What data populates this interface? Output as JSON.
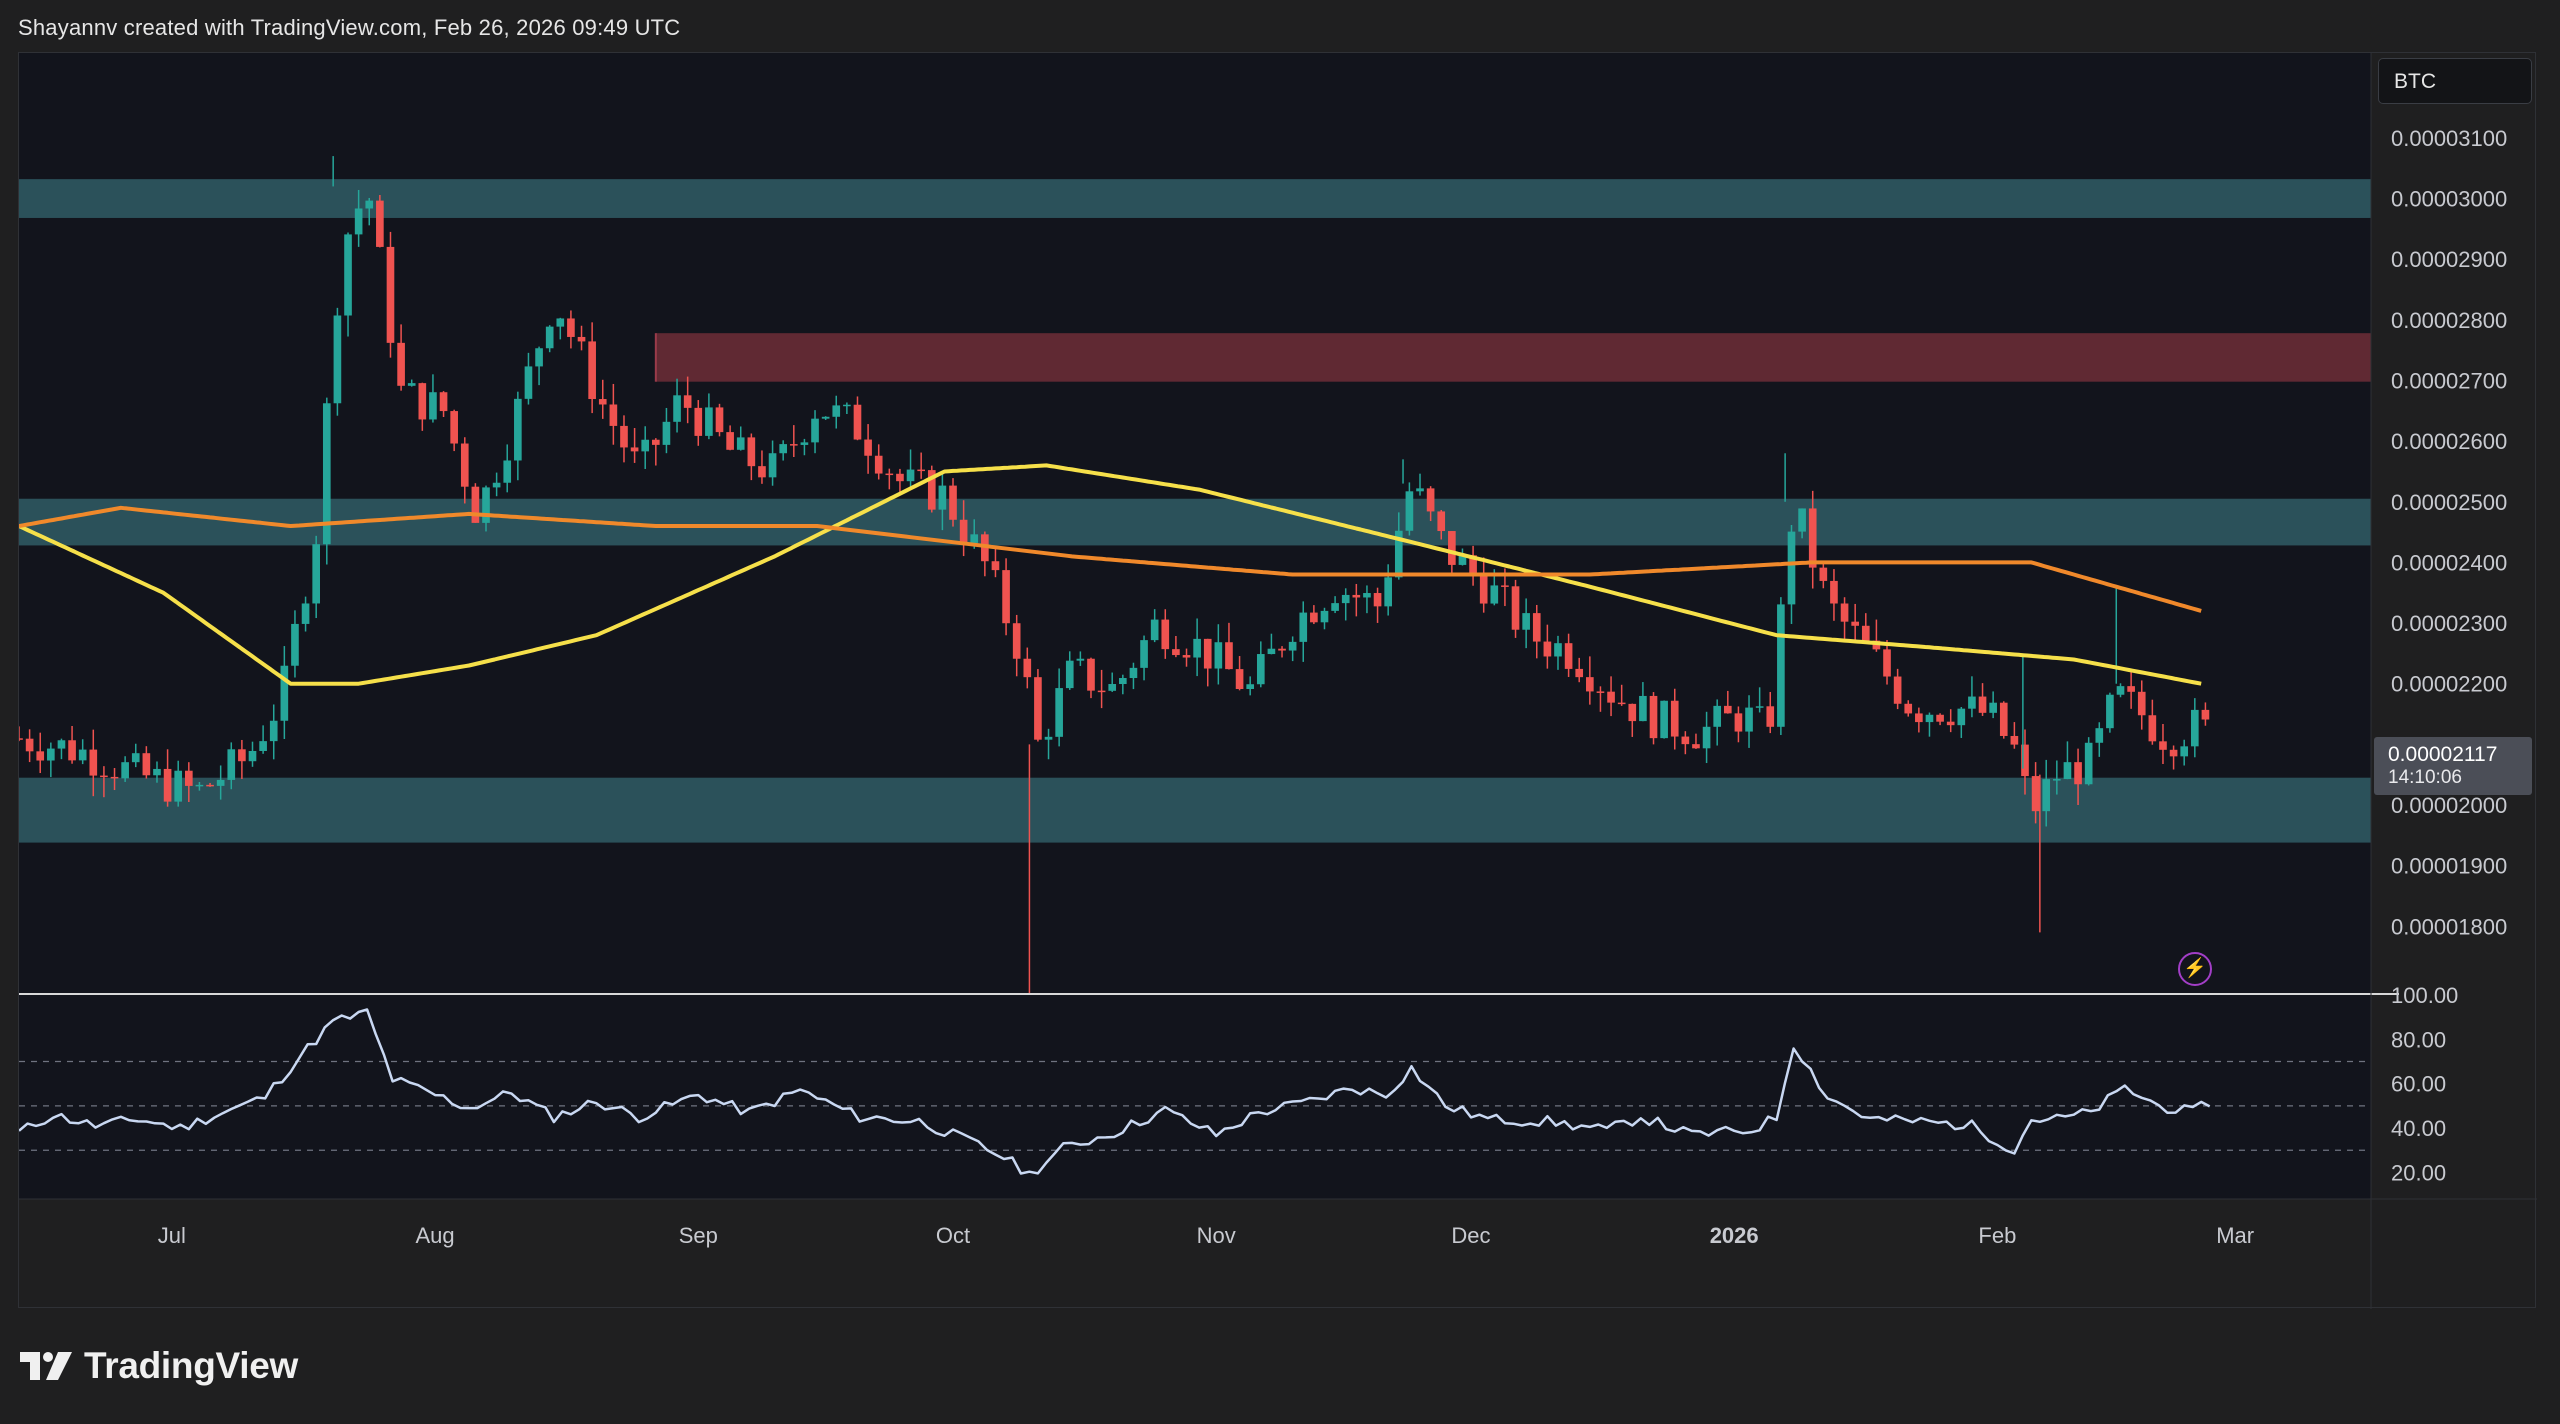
{
  "header": {
    "credit": "Shayannv created with TradingView.com, Feb 26, 2026 09:49 UTC"
  },
  "symbol": "BTC",
  "last_price": {
    "value": "0.00002117",
    "countdown": "14:10:06"
  },
  "footer": {
    "brand": "TradingView"
  },
  "colors": {
    "up": "#26a69a",
    "down": "#ef5350",
    "ma_fast": "#f6e04a",
    "ma_slow": "#f0892b",
    "zone_support": "#2f5a63",
    "zone_resistance": "#6b2c37",
    "rsi_line": "#c9d8f2",
    "background": "#12141c"
  },
  "icons": {
    "alert": "lightning-icon"
  },
  "chart_data": [
    {
      "type": "candlestick",
      "title": "",
      "x_ticks": [
        "Jul",
        "Aug",
        "Sep",
        "Oct",
        "Nov",
        "Dec",
        "2026",
        "Feb",
        "Mar"
      ],
      "y_ticks": [
        "0.00003100",
        "0.00003000",
        "0.00002900",
        "0.00002800",
        "0.00002700",
        "0.00002600",
        "0.00002500",
        "0.00002400",
        "0.00002300",
        "0.00002200",
        "0.00002000",
        "0.00001900",
        "0.00001800"
      ],
      "ylim": [
        1.69e-05,
        3.24e-05
      ],
      "xlim": [
        "2025-06-13",
        "2026-03-17"
      ],
      "zones": [
        {
          "kind": "support",
          "from": 2.968e-05,
          "to": 3.032e-05,
          "start": "2025-06-13"
        },
        {
          "kind": "resistance",
          "from": 2.698e-05,
          "to": 2.778e-05,
          "start": "2025-08-27"
        },
        {
          "kind": "support",
          "from": 2.428e-05,
          "to": 2.505e-05,
          "start": "2025-06-13"
        },
        {
          "kind": "support",
          "from": 1.938e-05,
          "to": 2.045e-05,
          "start": "2025-06-13"
        }
      ],
      "series": [
        {
          "name": "",
          "kind": "ma_fast",
          "x": [
            "2025-06-13",
            "2025-06-30",
            "2025-07-15",
            "2025-07-23",
            "2025-08-05",
            "2025-08-20",
            "2025-09-10",
            "2025-09-30",
            "2025-10-12",
            "2025-10-30",
            "2025-11-25",
            "2025-12-15",
            "2026-01-06",
            "2026-01-24",
            "2026-02-10",
            "2026-02-25"
          ],
          "y": [
            2.46e-05,
            2.35e-05,
            2.2e-05,
            2.2e-05,
            2.23e-05,
            2.28e-05,
            2.41e-05,
            2.55e-05,
            2.56e-05,
            2.52e-05,
            2.43e-05,
            2.36e-05,
            2.28e-05,
            2.26e-05,
            2.24e-05,
            2.2e-05
          ]
        },
        {
          "name": "",
          "kind": "ma_slow",
          "x": [
            "2025-06-13",
            "2025-06-25",
            "2025-07-15",
            "2025-08-05",
            "2025-08-27",
            "2025-09-15",
            "2025-10-15",
            "2025-11-10",
            "2025-12-15",
            "2026-01-10",
            "2026-02-05",
            "2026-02-15",
            "2026-02-25"
          ],
          "y": [
            2.46e-05,
            2.49e-05,
            2.46e-05,
            2.48e-05,
            2.46e-05,
            2.46e-05,
            2.41e-05,
            2.38e-05,
            2.38e-05,
            2.4e-05,
            2.4e-05,
            2.36e-05,
            2.32e-05
          ]
        },
        {
          "name": "",
          "kind": "price",
          "x": [
            "2025-06-13",
            "2025-06-20",
            "2025-06-27",
            "2025-07-04",
            "2025-07-10",
            "2025-07-14",
            "2025-07-18",
            "2025-07-21",
            "2025-07-24",
            "2025-07-28",
            "2025-08-02",
            "2025-08-06",
            "2025-08-10",
            "2025-08-15",
            "2025-08-20",
            "2025-08-25",
            "2025-08-30",
            "2025-09-05",
            "2025-09-10",
            "2025-09-15",
            "2025-09-20",
            "2025-09-25",
            "2025-09-30",
            "2025-10-05",
            "2025-10-09",
            "2025-10-11",
            "2025-10-15",
            "2025-10-20",
            "2025-10-25",
            "2025-10-30",
            "2025-11-05",
            "2025-11-10",
            "2025-11-15",
            "2025-11-20",
            "2025-11-24",
            "2025-11-28",
            "2025-12-03",
            "2025-12-08",
            "2025-12-13",
            "2025-12-18",
            "2025-12-23",
            "2025-12-28",
            "2026-01-02",
            "2026-01-05",
            "2026-01-08",
            "2026-01-12",
            "2026-01-17",
            "2026-01-22",
            "2026-01-27",
            "2026-01-31",
            "2026-02-03",
            "2026-02-05",
            "2026-02-08",
            "2026-02-12",
            "2026-02-15",
            "2026-02-18",
            "2026-02-21",
            "2026-02-24",
            "2026-02-26"
          ],
          "y": [
            2.11e-05,
            2.09e-05,
            2.05e-05,
            2.02e-05,
            2.08e-05,
            2.18e-05,
            2.45e-05,
            2.92e-05,
            3.02e-05,
            2.68e-05,
            2.65e-05,
            2.48e-05,
            2.62e-05,
            2.84e-05,
            2.68e-05,
            2.55e-05,
            2.67e-05,
            2.58e-05,
            2.55e-05,
            2.66e-05,
            2.62e-05,
            2.53e-05,
            2.51e-05,
            2.39e-05,
            2.25e-05,
            2.1e-05,
            2.22e-05,
            2.19e-05,
            2.3e-05,
            2.26e-05,
            2.19e-05,
            2.3e-05,
            2.36e-05,
            2.33e-05,
            2.53e-05,
            2.42e-05,
            2.36e-05,
            2.28e-05,
            2.25e-05,
            2.18e-05,
            2.14e-05,
            2.12e-05,
            2.15e-05,
            2.12e-05,
            2.5e-05,
            2.33e-05,
            2.25e-05,
            2.16e-05,
            2.16e-05,
            2.15e-05,
            2.09e-05,
            1.99e-05,
            2.05e-05,
            2.07e-05,
            2.18e-05,
            2.15e-05,
            2.11e-05,
            2.13e-05,
            2.12e-05
          ]
        }
      ]
    },
    {
      "type": "line",
      "title": "",
      "y_ticks": [
        "100.00",
        "80.00",
        "60.00",
        "40.00",
        "20.00"
      ],
      "ylim": [
        8,
        100
      ],
      "reference_lines": [
        70,
        50,
        30
      ],
      "series": [
        {
          "name": "",
          "x": [
            "2025-06-13",
            "2025-06-17",
            "2025-06-22",
            "2025-06-27",
            "2025-07-02",
            "2025-07-07",
            "2025-07-12",
            "2025-07-16",
            "2025-07-20",
            "2025-07-24",
            "2025-07-27",
            "2025-08-01",
            "2025-08-05",
            "2025-08-10",
            "2025-08-15",
            "2025-08-20",
            "2025-08-25",
            "2025-09-01",
            "2025-09-07",
            "2025-09-13",
            "2025-09-20",
            "2025-09-27",
            "2025-10-03",
            "2025-10-07",
            "2025-10-10",
            "2025-10-14",
            "2025-10-20",
            "2025-10-26",
            "2025-11-01",
            "2025-11-06",
            "2025-11-12",
            "2025-11-17",
            "2025-11-21",
            "2025-11-24",
            "2025-11-28",
            "2025-12-03",
            "2025-12-10",
            "2025-12-17",
            "2025-12-21",
            "2025-12-27",
            "2026-01-03",
            "2026-01-06",
            "2026-01-08",
            "2026-01-12",
            "2026-01-17",
            "2026-01-23",
            "2026-01-29",
            "2026-02-03",
            "2026-02-05",
            "2026-02-08",
            "2026-02-12",
            "2026-02-16",
            "2026-02-20",
            "2026-02-24",
            "2026-02-26"
          ],
          "y": [
            38,
            46,
            41,
            44,
            40,
            47,
            54,
            72,
            88,
            92,
            62,
            55,
            49,
            56,
            45,
            52,
            45,
            55,
            47,
            57,
            45,
            43,
            34,
            27,
            19,
            31,
            38,
            48,
            37,
            47,
            52,
            58,
            55,
            67,
            50,
            44,
            43,
            39,
            45,
            37,
            39,
            45,
            78,
            54,
            44,
            43,
            41,
            30,
            44,
            44,
            47,
            58,
            50,
            47,
            52
          ]
        }
      ]
    }
  ]
}
